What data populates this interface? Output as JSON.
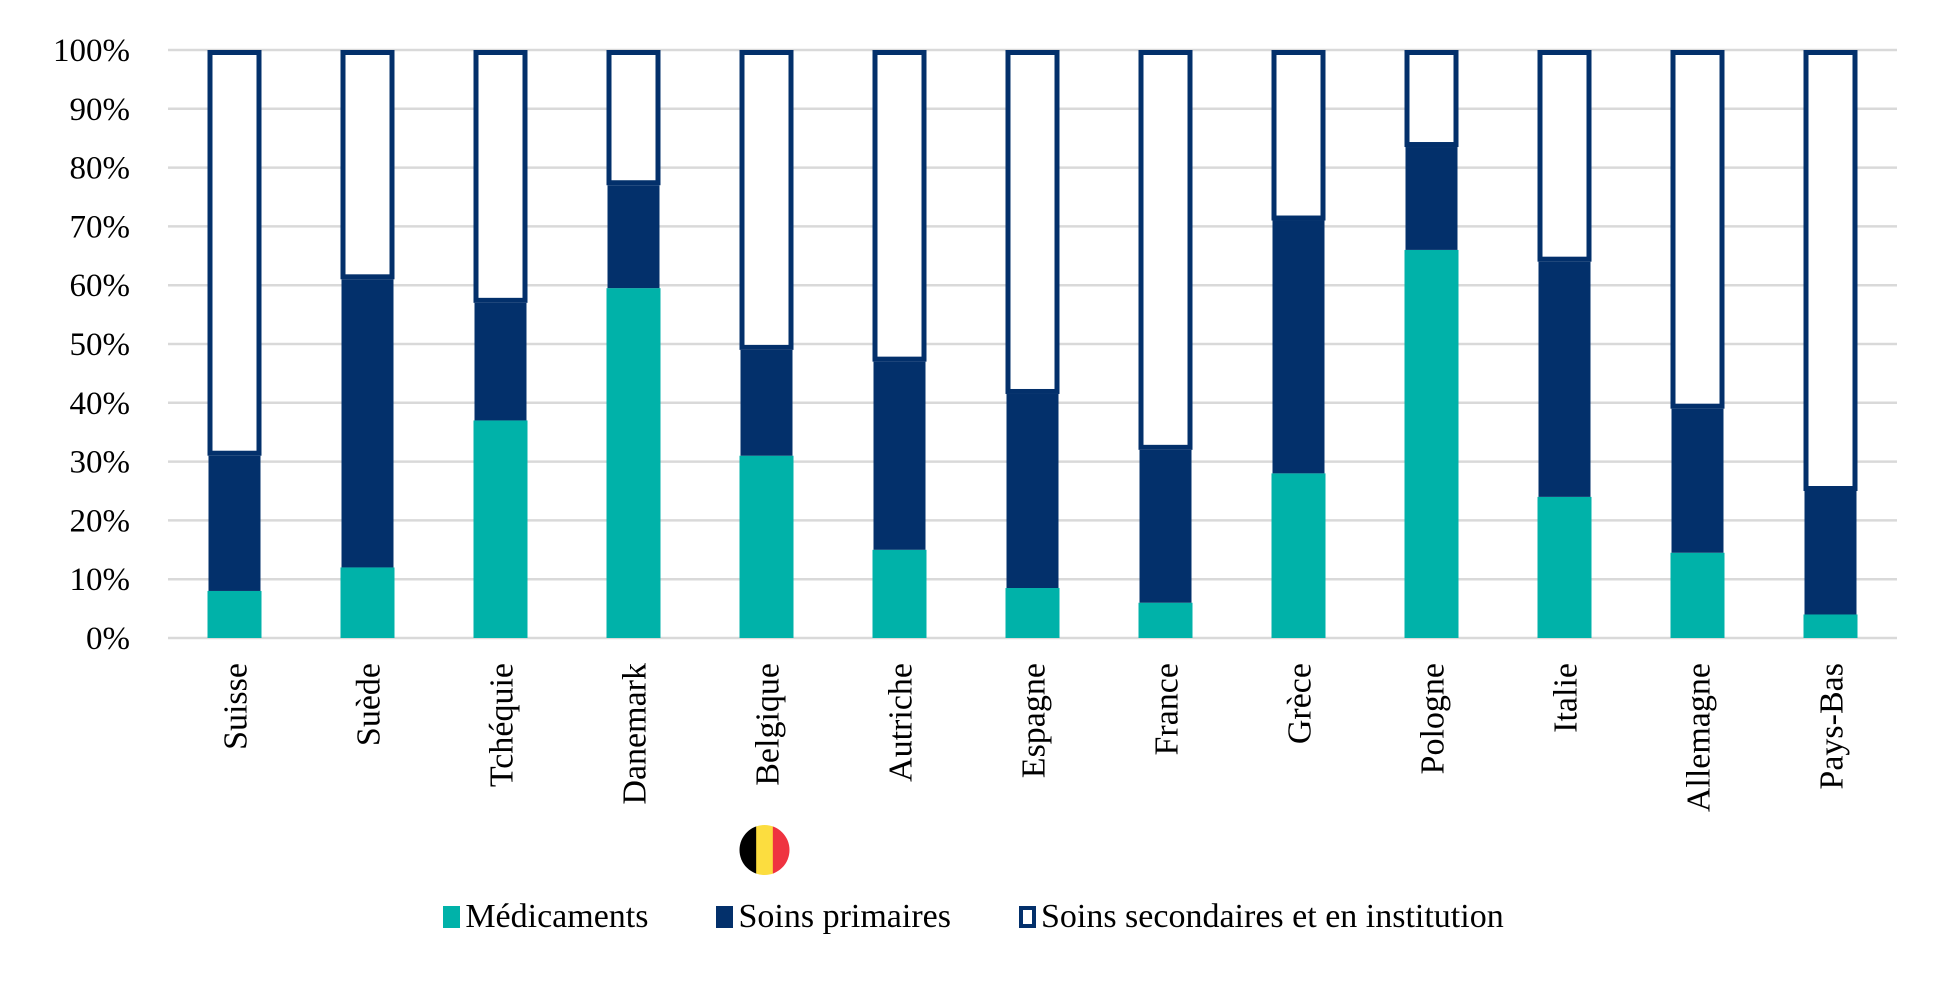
{
  "chart_data": {
    "type": "bar",
    "stacked": true,
    "title": "",
    "xlabel": "",
    "ylabel": "",
    "ylim": [
      0,
      100
    ],
    "yticks": [
      "0%",
      "10%",
      "20%",
      "30%",
      "40%",
      "50%",
      "60%",
      "70%",
      "80%",
      "90%",
      "100%"
    ],
    "grid": true,
    "legend_position": "bottom",
    "categories": [
      "Suisse",
      "Suède",
      "Tchéquie",
      "Danemark",
      "Belgique",
      "Autriche",
      "Espagne",
      "France",
      "Grèce",
      "Pologne",
      "Italie",
      "Allemagne",
      "Pays-Bas"
    ],
    "highlight_category": "Belgique",
    "highlight_icon": "belgium-flag-icon",
    "series": [
      {
        "name": "Médicaments",
        "color": "#00B2A9",
        "style": "filled",
        "values": [
          8,
          12,
          37,
          59.5,
          31,
          15,
          8.5,
          6,
          28,
          66,
          24,
          14.5,
          4
        ]
      },
      {
        "name": "Soins primaires",
        "color": "#03306B",
        "style": "filled",
        "values": [
          23,
          49,
          20,
          17.5,
          18,
          32,
          33,
          26,
          43,
          17.5,
          40,
          24.5,
          21
        ]
      },
      {
        "name": "Soins secondaires et en institution",
        "color": "#FFFFFF",
        "outline": "#03306B",
        "style": "outlined",
        "values": [
          69,
          39,
          43,
          23,
          51,
          53,
          58.5,
          68,
          29,
          16.5,
          36,
          61,
          75
        ]
      }
    ]
  },
  "colors": {
    "grid": "#D9D9D9",
    "text": "#000000"
  }
}
